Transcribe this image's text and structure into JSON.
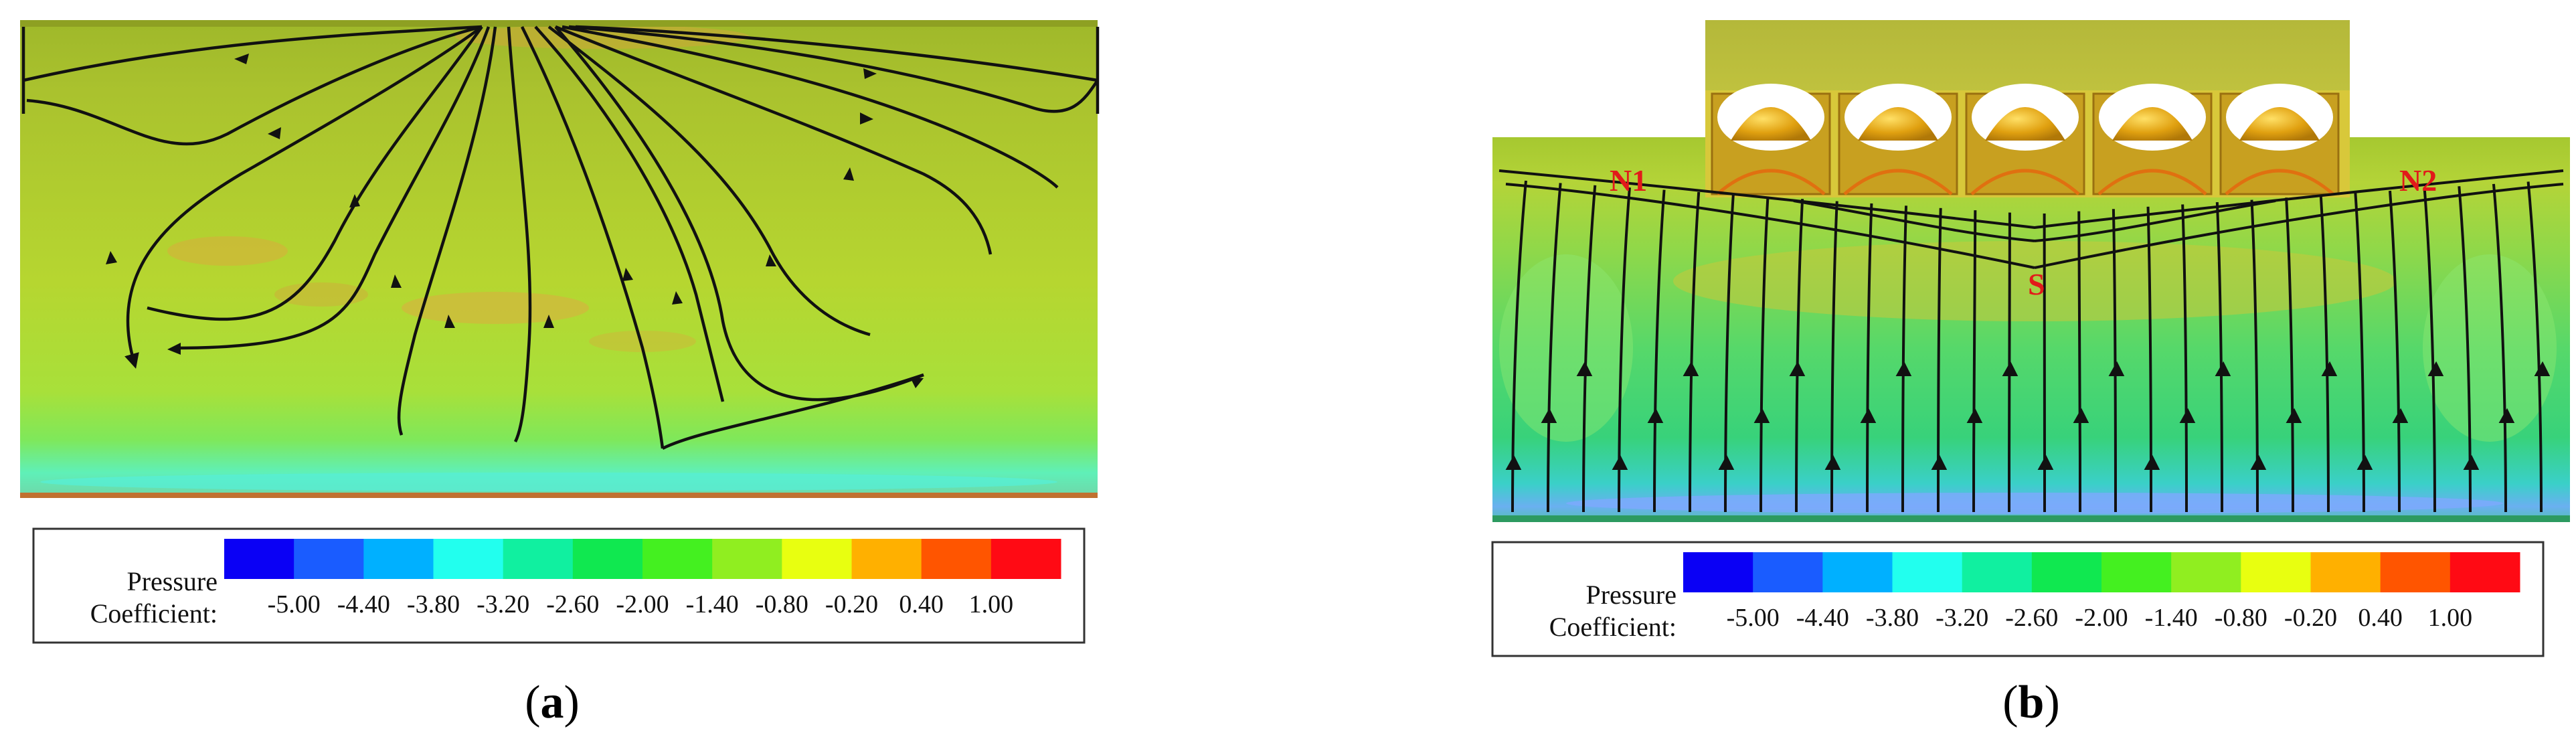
{
  "figure": {
    "panels": [
      {
        "id": "a",
        "caption_open": "(",
        "caption_letter": "a",
        "caption_close": ")",
        "legend": {
          "title_line1": "Pressure",
          "title_line2": "Coefficient:",
          "ticks": [
            "-5.00",
            "-4.40",
            "-3.80",
            "-3.20",
            "-2.60",
            "-2.00",
            "-1.40",
            "-0.80",
            "-0.20",
            "0.40",
            "1.00"
          ],
          "colors": [
            "#0a00f5",
            "#1a5cff",
            "#00b0ff",
            "#22ffee",
            "#10f0a0",
            "#10e850",
            "#44f020",
            "#90ee20",
            "#e8ff10",
            "#ffb000",
            "#ff5500",
            "#ff0a14"
          ]
        }
      },
      {
        "id": "b",
        "caption_open": "(",
        "caption_letter": "b",
        "caption_close": ")",
        "labels": {
          "left_node": "N1",
          "right_node": "N2",
          "saddle": "S"
        },
        "legend": {
          "title_line1": "Pressure",
          "title_line2": "Coefficient:",
          "ticks": [
            "-5.00",
            "-4.40",
            "-3.80",
            "-3.20",
            "-2.60",
            "-2.00",
            "-1.40",
            "-0.80",
            "-0.20",
            "0.40",
            "1.00"
          ],
          "colors": [
            "#0a00f5",
            "#1a5cff",
            "#00b0ff",
            "#22ffee",
            "#10f0a0",
            "#10e850",
            "#44f020",
            "#90ee20",
            "#e8ff10",
            "#ffb000",
            "#ff5500",
            "#ff0a14"
          ]
        }
      }
    ]
  }
}
